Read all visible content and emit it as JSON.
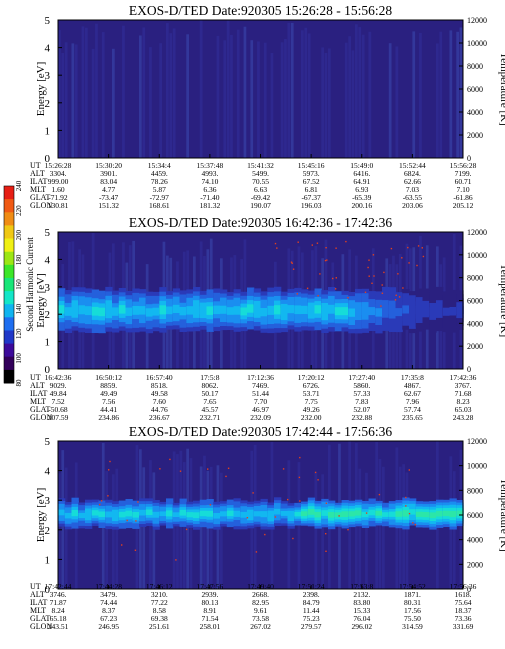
{
  "colors": {
    "plot_background": "#2a2080",
    "colorbar": [
      "#000000",
      "#32005a",
      "#3c0a9a",
      "#2038c8",
      "#1e6ef0",
      "#10b4f0",
      "#14e6c8",
      "#18e678",
      "#3ce628",
      "#9ce614",
      "#f0f014",
      "#f0c814",
      "#f08c14",
      "#f05a14",
      "#e61e14"
    ]
  },
  "chart_data": [
    {
      "type": "heatmap",
      "title": "EXOS-D/TED   Date:920305   15:26:28 - 15:56:28",
      "ylabel": "Energy [eV]",
      "y2label": "Temperature [K]",
      "ylim": [
        0,
        5
      ],
      "y2lim": [
        0,
        12000
      ],
      "yticks": [
        "0",
        "1",
        "2",
        "3",
        "4",
        "5"
      ],
      "y2ticks": [
        "0",
        "2000",
        "4000",
        "6000",
        "8000",
        "10000",
        "12000"
      ],
      "band": {
        "low": 0,
        "high": 0,
        "intensity": 0
      },
      "row_labels": [
        "UT",
        "ALT",
        "ILAT",
        "MLT",
        "GLAT",
        "GLON"
      ],
      "columns": [
        [
          "15:26:28",
          "3304.",
          "999.00",
          "1.60",
          "-71.92",
          "130.81"
        ],
        [
          "15:30:20",
          "3901.",
          "83.04",
          "4.77",
          "-73.47",
          "151.32"
        ],
        [
          "15:34:4",
          "4459.",
          "78.26",
          "5.87",
          "-72.97",
          "168.61"
        ],
        [
          "15:37:48",
          "4993.",
          "74.10",
          "6.36",
          "-71.40",
          "181.32"
        ],
        [
          "15:41:32",
          "5499.",
          "70.55",
          "6.63",
          "-69.42",
          "190.07"
        ],
        [
          "15:45:16",
          "5973.",
          "67.52",
          "6.81",
          "-67.37",
          "196.03"
        ],
        [
          "15:49:0",
          "6416.",
          "64.91",
          "6.93",
          "-65.39",
          "200.16"
        ],
        [
          "15:52:44",
          "6824.",
          "62.66",
          "7.03",
          "-63.55",
          "203.06"
        ],
        [
          "15:56:28",
          "7199.",
          "60.71",
          "7.10",
          "-61.86",
          "205.12"
        ]
      ]
    },
    {
      "type": "heatmap",
      "title": "EXOS-D/TED   Date:920305   16:42:36 - 17:42:36",
      "ylabel": "Energy [eV]",
      "y2label": "Temperature [K]",
      "ylim": [
        0,
        5
      ],
      "y2lim": [
        0,
        12000
      ],
      "yticks": [
        "0",
        "1",
        "2",
        "3",
        "4",
        "5"
      ],
      "y2ticks": [
        "0",
        "2000",
        "4000",
        "6000",
        "8000",
        "10000",
        "12000"
      ],
      "band": {
        "low": 1.3,
        "high": 3.0,
        "intensity": 0.65
      },
      "row_labels": [
        "UT",
        "ALT",
        "ILAT",
        "MLT",
        "GLAT",
        "GLON"
      ],
      "columns": [
        [
          "16:42:36",
          "9029.",
          "49.84",
          "7.52",
          "-50.68",
          "207.59"
        ],
        [
          "16:50:12",
          "8859.",
          "49.49",
          "7.56",
          "44.41",
          "234.86"
        ],
        [
          "16:57:40",
          "8518.",
          "49.58",
          "7.60",
          "44.76",
          "236.67"
        ],
        [
          "17:5:8",
          "8062.",
          "50.17",
          "7.65",
          "45.57",
          "232.71"
        ],
        [
          "17:12:36",
          "7469.",
          "51.44",
          "7.70",
          "46.97",
          "232.09"
        ],
        [
          "17:20:12",
          "6726.",
          "53.71",
          "7.75",
          "49.26",
          "232.00"
        ],
        [
          "17:27:40",
          "5860.",
          "57.33",
          "7.83",
          "52.07",
          "232.88"
        ],
        [
          "17:35:8",
          "4867.",
          "62.67",
          "7.96",
          "57.74",
          "235.65"
        ],
        [
          "17:42:36",
          "3767.",
          "71.68",
          "8.23",
          "65.03",
          "243.28"
        ]
      ]
    },
    {
      "type": "heatmap",
      "title": "EXOS-D/TED   Date:920305   17:42:44 - 17:56:36",
      "ylabel": "Energy [eV]",
      "y2label": "Temperature [K]",
      "ylim": [
        0,
        5
      ],
      "y2lim": [
        0,
        12000
      ],
      "yticks": [
        "0",
        "1",
        "2",
        "3",
        "4",
        "5"
      ],
      "y2ticks": [
        "0",
        "2000",
        "4000",
        "6000",
        "8000",
        "10000",
        "12000"
      ],
      "band": {
        "low": 2.0,
        "high": 3.1,
        "intensity": 0.9
      },
      "row_labels": [
        "UT",
        "ALT",
        "ILAT",
        "MLT",
        "GLAT",
        "GLON"
      ],
      "columns": [
        [
          "17:42:44",
          "3746.",
          "71.87",
          "8.24",
          "65.18",
          "243.51"
        ],
        [
          "17:44:28",
          "3479.",
          "74.44",
          "8.37",
          "67.23",
          "246.95"
        ],
        [
          "17:46:12",
          "3210.",
          "77.22",
          "8.58",
          "69.38",
          "251.61"
        ],
        [
          "17:47:56",
          "2939.",
          "80.13",
          "8.91",
          "71.54",
          "258.01"
        ],
        [
          "17:49:40",
          "2668.",
          "82.95",
          "9.61",
          "73.58",
          "267.02"
        ],
        [
          "17:51:24",
          "2398.",
          "84.79",
          "11.44",
          "75.23",
          "279.57"
        ],
        [
          "17:53:8",
          "2132.",
          "83.80",
          "15.33",
          "76.04",
          "296.02"
        ],
        [
          "17:54:52",
          "1871.",
          "80.31",
          "17.56",
          "75.50",
          "314.59"
        ],
        [
          "17:56:36",
          "1618.",
          "75.64",
          "18.37",
          "73.36",
          "331.69"
        ]
      ]
    }
  ],
  "colorbar": {
    "label": "Second Harmonic Current",
    "ticks": [
      "80",
      "100",
      "120",
      "140",
      "160",
      "180",
      "200",
      "220",
      "240"
    ]
  }
}
